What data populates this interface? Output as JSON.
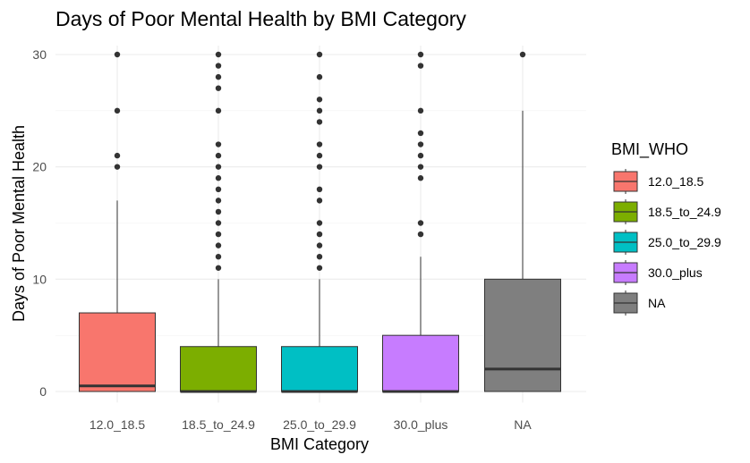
{
  "chart_data": {
    "type": "box",
    "title": "Days of Poor Mental Health by BMI Category",
    "xlabel": "BMI Category",
    "ylabel": "Days of Poor Mental Health",
    "ylim": [
      -0.5,
      30
    ],
    "yticks": [
      0,
      10,
      20,
      30
    ],
    "grid": true,
    "legend": {
      "title": "BMI_WHO",
      "placement": "right",
      "entries": [
        "12.0_18.5",
        "18.5_to_24.9",
        "25.0_to_29.9",
        "30.0_plus",
        "NA"
      ]
    },
    "categories": [
      "12.0_18.5",
      "18.5_to_24.9",
      "25.0_to_29.9",
      "30.0_plus",
      "NA"
    ],
    "boxes": [
      {
        "category": "12.0_18.5",
        "color": "#F8766D",
        "min": 0,
        "q1": 0,
        "median": 0.5,
        "q3": 7,
        "max": 17,
        "outliers": [
          20,
          21,
          25,
          30
        ]
      },
      {
        "category": "18.5_to_24.9",
        "color": "#7CAE00",
        "min": 0,
        "q1": 0,
        "median": 0,
        "q3": 4,
        "max": 10,
        "outliers": [
          11,
          12,
          13,
          14,
          15,
          16,
          17,
          18,
          19,
          20,
          21,
          22,
          25,
          27,
          28,
          29,
          30
        ]
      },
      {
        "category": "25.0_to_29.9",
        "color": "#00BFC4",
        "min": 0,
        "q1": 0,
        "median": 0,
        "q3": 4,
        "max": 10,
        "outliers": [
          11,
          12,
          13,
          14,
          15,
          17,
          18,
          20,
          21,
          22,
          24,
          25,
          26,
          28,
          30
        ]
      },
      {
        "category": "30.0_plus",
        "color": "#C77CFF",
        "min": 0,
        "q1": 0,
        "median": 0,
        "q3": 5,
        "max": 12,
        "outliers": [
          14,
          15,
          19,
          20,
          21,
          22,
          23,
          25,
          29,
          30
        ]
      },
      {
        "category": "NA",
        "color": "#7F7F7F",
        "min": 0,
        "q1": 0,
        "median": 2,
        "q3": 10,
        "max": 25,
        "outliers": [
          30
        ]
      }
    ]
  }
}
